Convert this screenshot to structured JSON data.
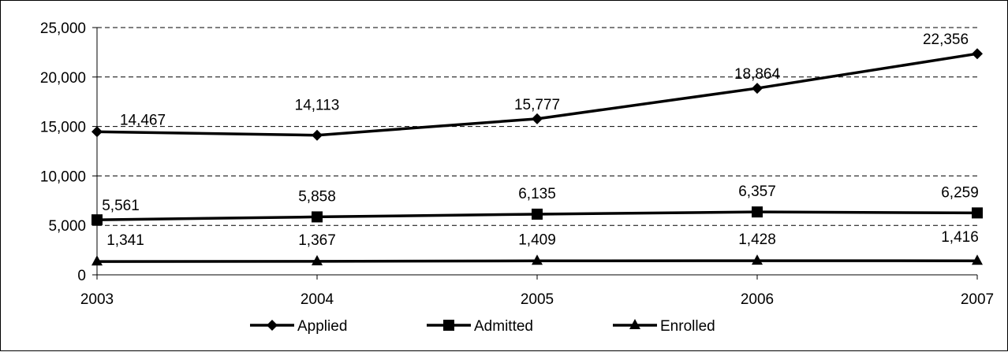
{
  "chart_data": {
    "type": "line",
    "title": "",
    "xlabel": "",
    "ylabel": "",
    "categories": [
      "2003",
      "2004",
      "2005",
      "2006",
      "2007"
    ],
    "series": [
      {
        "name": "Applied",
        "marker": "diamond",
        "values": [
          14467,
          14113,
          15777,
          18864,
          22356
        ],
        "labels": [
          "14,467",
          "14,113",
          "15,777",
          "18,864",
          "22,356"
        ]
      },
      {
        "name": "Admitted",
        "marker": "square",
        "values": [
          5561,
          5858,
          6135,
          6357,
          6259
        ],
        "labels": [
          "5,561",
          "5,858",
          "6,135",
          "6,357",
          "6,259"
        ]
      },
      {
        "name": "Enrolled",
        "marker": "triangle",
        "values": [
          1341,
          1367,
          1409,
          1428,
          1416
        ],
        "labels": [
          "1,341",
          "1,367",
          "1,409",
          "1,428",
          "1,416"
        ]
      }
    ],
    "ylim": [
      0,
      25000
    ],
    "y_ticks": [
      0,
      5000,
      10000,
      15000,
      20000,
      25000
    ],
    "y_tick_labels": [
      "0",
      "5,000",
      "10,000",
      "15,000",
      "20,000",
      "25,000"
    ],
    "grid": "horizontal dashed",
    "legend": "bottom",
    "line_color": "#000000"
  }
}
